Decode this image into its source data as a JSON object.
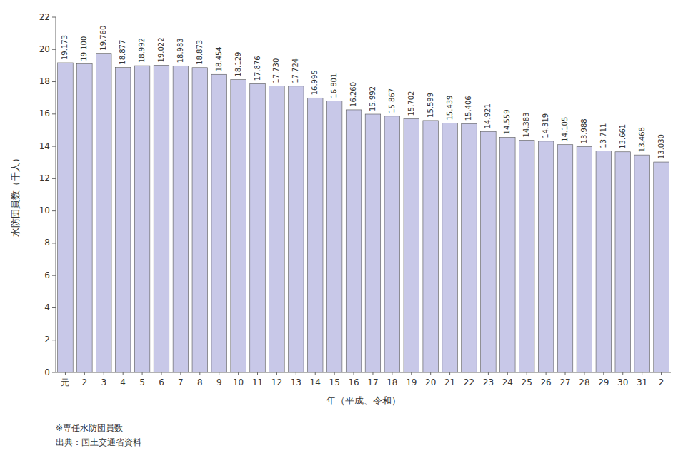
{
  "chart_data": {
    "type": "bar",
    "x_label": "年（平成、令和）",
    "y_label": "水防団員数（千人）",
    "categories": [
      "元",
      "2",
      "3",
      "4",
      "5",
      "6",
      "7",
      "8",
      "9",
      "10",
      "11",
      "12",
      "13",
      "14",
      "15",
      "16",
      "17",
      "18",
      "19",
      "20",
      "21",
      "22",
      "23",
      "24",
      "25",
      "26",
      "27",
      "28",
      "29",
      "30",
      "31",
      "2"
    ],
    "values": [
      19.173,
      19.1,
      19.76,
      18.877,
      18.992,
      19.022,
      18.983,
      18.873,
      18.454,
      18.129,
      17.876,
      17.73,
      17.724,
      16.995,
      16.801,
      16.26,
      15.992,
      15.867,
      15.702,
      15.599,
      15.439,
      15.406,
      14.921,
      14.559,
      14.383,
      14.319,
      14.105,
      13.988,
      13.711,
      13.661,
      13.468,
      13.03
    ],
    "value_labels": [
      "19.173",
      "19.100",
      "19.760",
      "18.877",
      "18.992",
      "19.022",
      "18.983",
      "18.873",
      "18.454",
      "18.129",
      "17.876",
      "17.730",
      "17.724",
      "16.995",
      "16.801",
      "16.260",
      "15.992",
      "15.867",
      "15.702",
      "15.599",
      "15.439",
      "15.406",
      "14.921",
      "14.559",
      "14.383",
      "14.319",
      "14.105",
      "13.988",
      "13.711",
      "13.661",
      "13.468",
      "13.030"
    ],
    "data_labels": true,
    "color": "#c8c8e8",
    "ylim": [
      0,
      22
    ],
    "yticks": [
      0,
      2,
      4,
      6,
      8,
      10,
      12,
      14,
      16,
      18,
      20,
      22
    ],
    "grid": false,
    "annotations": [
      "※専任水防団員数",
      "出典：国土交通省資料"
    ]
  }
}
